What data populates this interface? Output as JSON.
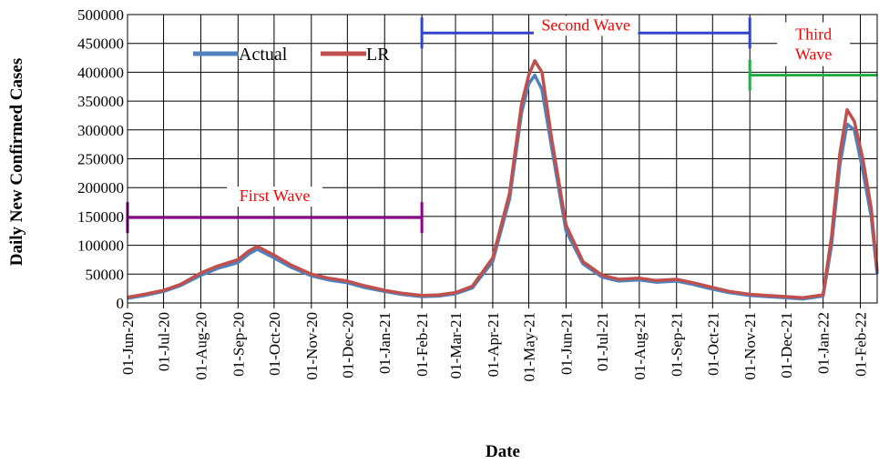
{
  "chart_data": {
    "type": "line",
    "xlabel": "Date",
    "ylabel": "Daily New Confirmed Cases",
    "ylim": [
      0,
      500000
    ],
    "yticks": [
      0,
      50000,
      100000,
      150000,
      200000,
      250000,
      300000,
      350000,
      400000,
      450000,
      500000
    ],
    "xlim": [
      "2020-06-01",
      "2022-02-15"
    ],
    "xticks": [
      "01-Jun-20",
      "01-Jul-20",
      "01-Aug-20",
      "01-Sep-20",
      "01-Oct-20",
      "01-Nov-20",
      "01-Dec-20",
      "01-Jan-21",
      "01-Feb-21",
      "01-Mar-21",
      "01-Apr-21",
      "01-May-21",
      "01-Jun-21",
      "01-Jul-21",
      "01-Aug-21",
      "01-Sep-21",
      "01-Oct-21",
      "01-Nov-21",
      "01-Dec-21",
      "01-Jan-22",
      "01-Feb-22"
    ],
    "grid": true,
    "legend_position": "top-left",
    "series": [
      {
        "name": "Actual",
        "color": "#4f81bd",
        "x": [
          "2020-06-01",
          "2020-06-15",
          "2020-07-01",
          "2020-07-15",
          "2020-08-01",
          "2020-08-15",
          "2020-09-01",
          "2020-09-10",
          "2020-09-17",
          "2020-10-01",
          "2020-10-15",
          "2020-11-01",
          "2020-11-15",
          "2020-12-01",
          "2020-12-15",
          "2021-01-01",
          "2021-01-15",
          "2021-02-01",
          "2021-02-15",
          "2021-03-01",
          "2021-03-15",
          "2021-04-01",
          "2021-04-15",
          "2021-04-25",
          "2021-05-01",
          "2021-05-06",
          "2021-05-12",
          "2021-05-20",
          "2021-06-01",
          "2021-06-15",
          "2021-07-01",
          "2021-07-15",
          "2021-08-01",
          "2021-08-15",
          "2021-09-01",
          "2021-09-15",
          "2021-10-01",
          "2021-10-15",
          "2021-11-01",
          "2021-11-15",
          "2021-12-01",
          "2021-12-15",
          "2022-01-01",
          "2022-01-08",
          "2022-01-15",
          "2022-01-21",
          "2022-01-27",
          "2022-02-03",
          "2022-02-10",
          "2022-02-15"
        ],
        "y": [
          8000,
          13000,
          20000,
          30000,
          48000,
          60000,
          70000,
          85000,
          93000,
          78000,
          62000,
          47000,
          40000,
          35000,
          27000,
          20000,
          15000,
          11000,
          12000,
          16000,
          26000,
          72000,
          180000,
          330000,
          380000,
          395000,
          370000,
          270000,
          125000,
          68000,
          45000,
          38000,
          40000,
          36000,
          38000,
          32000,
          24000,
          18000,
          13000,
          11000,
          9000,
          7000,
          12000,
          100000,
          240000,
          310000,
          300000,
          230000,
          150000,
          50000
        ]
      },
      {
        "name": "LR",
        "color": "#c0504d",
        "x": [
          "2020-06-01",
          "2020-06-15",
          "2020-07-01",
          "2020-07-15",
          "2020-08-01",
          "2020-08-15",
          "2020-09-01",
          "2020-09-10",
          "2020-09-17",
          "2020-10-01",
          "2020-10-15",
          "2020-11-01",
          "2020-11-15",
          "2020-12-01",
          "2020-12-15",
          "2021-01-01",
          "2021-01-15",
          "2021-02-01",
          "2021-02-15",
          "2021-03-01",
          "2021-03-15",
          "2021-04-01",
          "2021-04-15",
          "2021-04-25",
          "2021-05-01",
          "2021-05-06",
          "2021-05-12",
          "2021-05-20",
          "2021-06-01",
          "2021-06-15",
          "2021-07-01",
          "2021-07-15",
          "2021-08-01",
          "2021-08-15",
          "2021-09-01",
          "2021-09-15",
          "2021-10-01",
          "2021-10-15",
          "2021-11-01",
          "2021-11-15",
          "2021-12-01",
          "2021-12-15",
          "2022-01-01",
          "2022-01-08",
          "2022-01-15",
          "2022-01-21",
          "2022-01-27",
          "2022-02-03",
          "2022-02-10",
          "2022-02-15"
        ],
        "y": [
          10000,
          15000,
          22000,
          32000,
          52000,
          64000,
          75000,
          90000,
          98000,
          83000,
          66000,
          50000,
          43000,
          38000,
          30000,
          22000,
          17000,
          13000,
          14000,
          18000,
          29000,
          78000,
          190000,
          345000,
          395000,
          420000,
          400000,
          285000,
          135000,
          72000,
          48000,
          41000,
          43000,
          39000,
          41000,
          35000,
          27000,
          20000,
          15000,
          13000,
          11000,
          9000,
          14000,
          115000,
          260000,
          335000,
          315000,
          250000,
          165000,
          55000
        ]
      }
    ],
    "annotations": [
      {
        "label": "First Wave",
        "color": "#8b008b",
        "label_color": "#ff0000",
        "from": "2020-06-01",
        "to": "2021-02-01",
        "y": 148000
      },
      {
        "label": "Second Wave",
        "color": "#3344cc",
        "label_color": "#ff0000",
        "from": "2021-02-01",
        "to": "2021-11-01",
        "y": 468000
      },
      {
        "label": "Third Wave",
        "label_lines": [
          "Third",
          "Wave"
        ],
        "color": "#22aa44",
        "label_color": "#ff0000",
        "from": "2021-11-01",
        "to": "2022-02-15",
        "y": 395000
      }
    ]
  }
}
